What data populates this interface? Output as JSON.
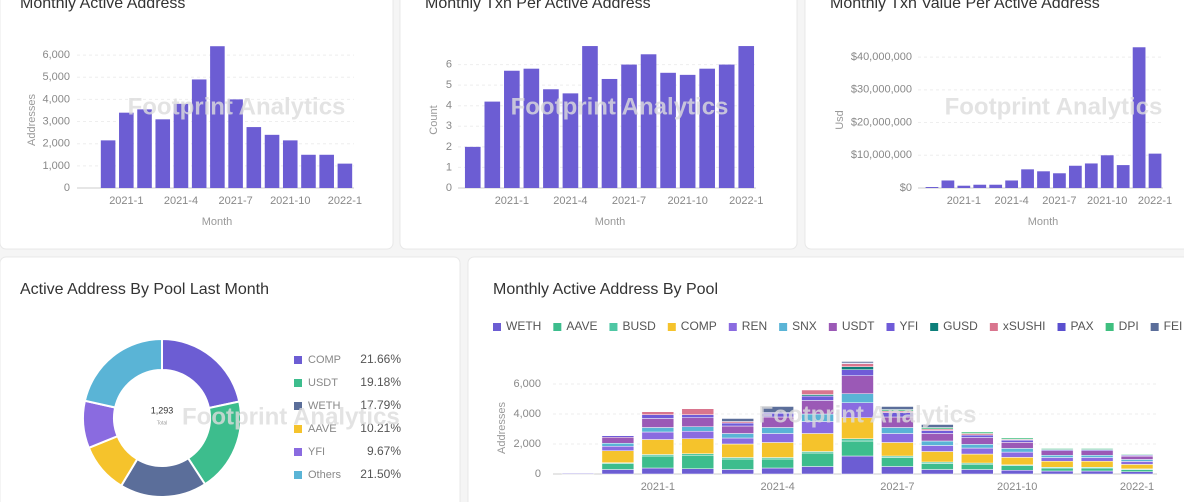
{
  "watermark": "Footprint Analytics",
  "chart_data": [
    {
      "type": "bar",
      "title": "Monthly Active Address",
      "x_label": "Month",
      "y_label": "Addresses",
      "color": "#6c5dd3",
      "grid": true,
      "categories": [
        null,
        "2021-1",
        null,
        null,
        "2021-4",
        null,
        null,
        "2021-7",
        null,
        null,
        "2021-10",
        null,
        null,
        "2022-1"
      ],
      "values": [
        2150,
        3400,
        3550,
        3100,
        3800,
        4900,
        6400,
        4000,
        2750,
        2400,
        2150,
        1500,
        1500,
        1100
      ],
      "ylim": [
        0,
        6500
      ],
      "yticks": [
        0,
        {
          "value": 1000,
          "label": "1,000"
        },
        {
          "value": 2000,
          "label": "2,000"
        },
        {
          "value": 3000,
          "label": "3,000"
        },
        {
          "value": 4000,
          "label": "4,000"
        },
        {
          "value": 5000,
          "label": "5,000"
        },
        {
          "value": 6000,
          "label": "6,000"
        }
      ]
    },
    {
      "type": "bar",
      "title": "Monthly Txn Per Active Address",
      "x_label": "Month",
      "y_label": "Count",
      "color": "#6c5dd3",
      "grid": true,
      "categories": [
        null,
        null,
        "2021-1",
        null,
        null,
        "2021-4",
        null,
        null,
        "2021-7",
        null,
        null,
        "2021-10",
        null,
        null,
        "2022-1"
      ],
      "values": [
        2.0,
        4.2,
        5.7,
        5.8,
        4.8,
        4.6,
        6.9,
        5.3,
        6.0,
        6.5,
        5.6,
        5.5,
        5.8,
        6.0,
        6.9
      ],
      "ylim": [
        0,
        7
      ],
      "yticks": [
        0,
        1,
        2,
        3,
        4,
        5,
        6
      ]
    },
    {
      "type": "bar",
      "title": "Monthly Txn Value Per Active Address",
      "x_label": "Month",
      "y_label": "Usd",
      "color": "#6c5dd3",
      "grid": true,
      "categories": [
        null,
        null,
        "2021-1",
        null,
        null,
        "2021-4",
        null,
        null,
        "2021-7",
        null,
        null,
        "2021-10",
        null,
        null,
        "2022-1"
      ],
      "values": [
        300000,
        2300000,
        700000,
        1000000,
        1000000,
        2300000,
        5700000,
        5100000,
        4500000,
        6800000,
        7500000,
        10000000,
        7000000,
        43000000,
        10500000
      ],
      "ylim": [
        0,
        44000000
      ],
      "yticks": [
        {
          "value": 0,
          "label": "$0"
        },
        {
          "value": 10000000,
          "label": "$10,000,000"
        },
        {
          "value": 20000000,
          "label": "$20,000,000"
        },
        {
          "value": 30000000,
          "label": "$30,000,000"
        },
        {
          "value": 40000000,
          "label": "$40,000,000"
        }
      ]
    },
    {
      "type": "pie",
      "title": "Active Address By Pool Last Month",
      "center_label": "1,293",
      "center_sublabel": "Total",
      "categories": [
        "COMP",
        "USDT",
        "WETH",
        "AAVE",
        "YFI",
        "Others"
      ],
      "values": [
        21.66,
        19.18,
        17.79,
        10.21,
        9.67,
        21.5
      ],
      "value_labels": [
        "21.66%",
        "19.18%",
        "17.79%",
        "10.21%",
        "9.67%",
        "21.50%"
      ],
      "colors": [
        "#6c5dd3",
        "#3dbd8d",
        "#5b6e9a",
        "#f5c32c",
        "#8a6be0",
        "#5ab4d6"
      ]
    },
    {
      "type": "stacked_bar",
      "title": "Monthly Active Address By Pool",
      "y_label": "Addresses",
      "grid": true,
      "legend": "top",
      "categories": [
        null,
        null,
        "2021-1",
        null,
        null,
        "2021-4",
        null,
        null,
        "2021-7",
        null,
        null,
        "2021-10",
        null,
        null,
        "2022-1"
      ],
      "ylim": [
        0,
        8000
      ],
      "yticks": [
        0,
        {
          "value": 2000,
          "label": "2,000"
        },
        {
          "value": 4000,
          "label": "4,000"
        },
        {
          "value": 6000,
          "label": "6,000"
        }
      ],
      "series": [
        {
          "name": "WETH",
          "color": "#6c5dd3",
          "values": [
            50,
            300,
            400,
            350,
            300,
            400,
            500,
            1200,
            500,
            300,
            300,
            250,
            200,
            200,
            150
          ]
        },
        {
          "name": "AAVE",
          "color": "#3dbd8d",
          "values": [
            0,
            400,
            800,
            900,
            700,
            600,
            900,
            1000,
            600,
            400,
            350,
            300,
            200,
            200,
            150
          ]
        },
        {
          "name": "BUSD",
          "color": "#4fc7a4",
          "values": [
            0,
            50,
            100,
            100,
            100,
            100,
            100,
            150,
            100,
            100,
            80,
            60,
            50,
            50,
            40
          ]
        },
        {
          "name": "COMP",
          "color": "#f5c32c",
          "values": [
            30,
            800,
            1000,
            1000,
            900,
            1000,
            1200,
            1400,
            900,
            700,
            600,
            500,
            400,
            400,
            300
          ]
        },
        {
          "name": "REN",
          "color": "#8a6be0",
          "values": [
            0,
            300,
            500,
            500,
            400,
            600,
            800,
            1000,
            600,
            400,
            400,
            350,
            250,
            250,
            200
          ]
        },
        {
          "name": "SNX",
          "color": "#5ab4d6",
          "values": [
            0,
            200,
            300,
            300,
            300,
            400,
            500,
            600,
            400,
            300,
            250,
            250,
            150,
            150,
            130
          ]
        },
        {
          "name": "USDT",
          "color": "#9b59b6",
          "values": [
            20,
            400,
            600,
            600,
            500,
            700,
            900,
            1200,
            700,
            500,
            450,
            400,
            300,
            300,
            220
          ]
        },
        {
          "name": "YFI",
          "color": "#6f5bd8",
          "values": [
            0,
            100,
            250,
            200,
            200,
            250,
            300,
            400,
            300,
            200,
            170,
            150,
            80,
            80,
            60
          ]
        },
        {
          "name": "GUSD",
          "color": "#0d7f7a",
          "values": [
            0,
            0,
            0,
            0,
            0,
            0,
            100,
            200,
            0,
            0,
            0,
            0,
            0,
            0,
            0
          ]
        },
        {
          "name": "xSUSHI",
          "color": "#d9758e",
          "values": [
            0,
            0,
            200,
            400,
            100,
            0,
            300,
            200,
            100,
            100,
            100,
            50,
            0,
            0,
            0
          ]
        },
        {
          "name": "PAX",
          "color": "#5a4fcf",
          "values": [
            0,
            0,
            0,
            0,
            0,
            50,
            0,
            50,
            0,
            0,
            0,
            0,
            0,
            0,
            0
          ]
        },
        {
          "name": "DPI",
          "color": "#3fbf7f",
          "values": [
            0,
            0,
            0,
            0,
            0,
            0,
            0,
            0,
            100,
            100,
            100,
            90,
            70,
            70,
            50
          ]
        },
        {
          "name": "FEI",
          "color": "#5b6e9a",
          "values": [
            0,
            0,
            0,
            0,
            200,
            400,
            0,
            100,
            200,
            200,
            0,
            0,
            0,
            0,
            0
          ]
        }
      ]
    }
  ]
}
